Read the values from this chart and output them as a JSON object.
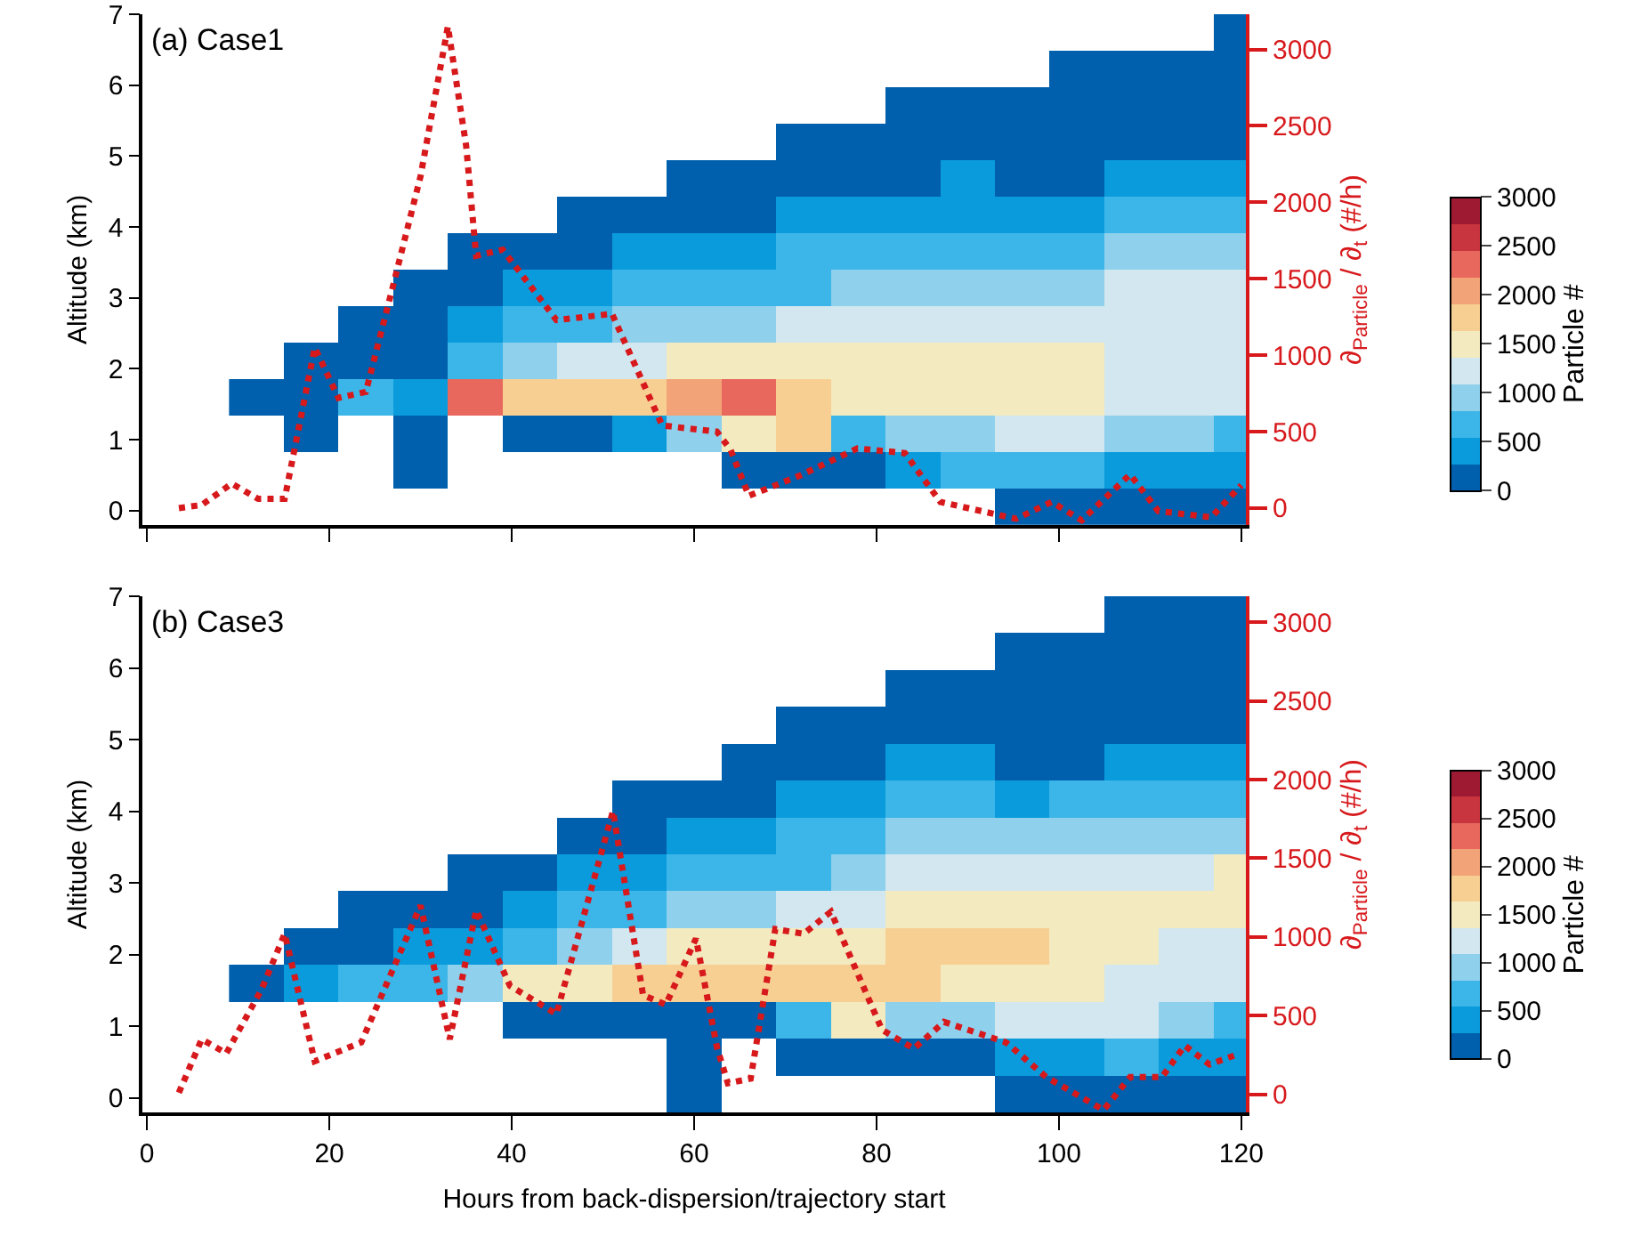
{
  "chart_data": [
    {
      "type": "heatmap",
      "title": "(a) Case1",
      "ylabel": "Altitude (km)",
      "clabel": "Particle #",
      "tick_labels": "y",
      "xlim": [
        -0.5,
        120.5
      ],
      "xticks": [
        0,
        20,
        40,
        60,
        80,
        100,
        120
      ],
      "ylim": [
        -0.2,
        7
      ],
      "yticks": [
        0,
        1,
        2,
        3,
        4,
        5,
        6,
        7
      ],
      "clim": [
        0,
        3000
      ],
      "cticks": [
        0,
        500,
        1000,
        1500,
        2000,
        2500,
        3000
      ],
      "colors": [
        "#0060ad",
        "#0a9bdc",
        "#3cb6e8",
        "#8fd0ec",
        "#d2e7ef",
        "#f3eabf",
        "#f7cf93",
        "#f2a478",
        "#e8685e",
        "#c9353f",
        "#9e1a32"
      ],
      "x": [
        12,
        18,
        24,
        30,
        36,
        42,
        48,
        54,
        60,
        66,
        72,
        78,
        84,
        90,
        96,
        102,
        108,
        114,
        120
      ],
      "cells": [
        [
          null,
          null,
          null,
          null,
          null,
          null,
          null,
          null,
          null,
          null,
          null,
          null,
          null,
          null,
          null,
          null,
          null,
          null,
          150
        ],
        [
          null,
          null,
          null,
          null,
          null,
          null,
          null,
          null,
          null,
          null,
          null,
          null,
          null,
          null,
          null,
          150,
          150,
          150,
          150
        ],
        [
          null,
          null,
          null,
          null,
          null,
          null,
          null,
          null,
          null,
          null,
          null,
          null,
          150,
          150,
          150,
          150,
          150,
          150,
          150
        ],
        [
          null,
          null,
          null,
          null,
          null,
          null,
          null,
          null,
          null,
          null,
          150,
          150,
          150,
          150,
          150,
          150,
          150,
          150,
          150
        ],
        [
          null,
          null,
          null,
          null,
          null,
          null,
          null,
          null,
          150,
          150,
          150,
          150,
          150,
          400,
          150,
          150,
          400,
          400,
          400
        ],
        [
          null,
          null,
          null,
          null,
          null,
          null,
          150,
          150,
          150,
          150,
          400,
          400,
          400,
          400,
          400,
          400,
          700,
          700,
          700
        ],
        [
          null,
          null,
          null,
          null,
          150,
          150,
          150,
          400,
          400,
          400,
          700,
          700,
          700,
          700,
          700,
          700,
          950,
          950,
          950
        ],
        [
          null,
          null,
          null,
          150,
          150,
          400,
          400,
          700,
          700,
          700,
          700,
          950,
          950,
          950,
          950,
          950,
          1200,
          1200,
          1200
        ],
        [
          null,
          null,
          150,
          150,
          400,
          700,
          700,
          950,
          950,
          950,
          1200,
          1200,
          1200,
          1200,
          1200,
          1200,
          1200,
          1200,
          1200
        ],
        [
          null,
          150,
          150,
          150,
          700,
          950,
          1200,
          1200,
          1500,
          1500,
          1500,
          1500,
          1500,
          1500,
          1500,
          1500,
          1200,
          1200,
          1200
        ],
        [
          150,
          150,
          700,
          400,
          2300,
          1750,
          1750,
          1750,
          2050,
          2300,
          1750,
          1500,
          1500,
          1500,
          1500,
          1500,
          1200,
          1200,
          1200
        ],
        [
          null,
          150,
          null,
          150,
          null,
          150,
          150,
          400,
          950,
          1500,
          1750,
          700,
          950,
          950,
          1200,
          1200,
          950,
          950,
          700
        ],
        [
          null,
          null,
          null,
          150,
          null,
          null,
          null,
          null,
          null,
          150,
          150,
          150,
          400,
          700,
          700,
          700,
          400,
          400,
          400
        ],
        [
          null,
          null,
          null,
          null,
          null,
          null,
          null,
          null,
          null,
          null,
          null,
          null,
          null,
          null,
          150,
          150,
          150,
          150,
          150
        ]
      ]
    },
    {
      "type": "line",
      "ylabel": "∂$_{Particle}$ / ∂$_{t}$ (#/h)",
      "tick_labels": "y",
      "color": "#d7191c",
      "line_style": "dotted",
      "marker": "none",
      "xlim": [
        -0.5,
        120.5
      ],
      "ylim": [
        -110,
        3230
      ],
      "yticks": [
        0,
        500,
        1000,
        1500,
        2000,
        2500,
        3000
      ],
      "x": [
        3.5,
        6,
        9.3,
        12.2,
        15.1,
        16.5,
        18.4,
        21,
        24,
        26.8,
        30,
        33,
        35,
        36.1,
        39,
        44.9,
        51,
        56.5,
        62.5,
        64,
        66,
        71.5,
        77.9,
        83.1,
        87,
        95.3,
        99.2,
        102.5,
        107.8,
        110.9,
        116.7,
        120
      ],
      "values": [
        0,
        20,
        160,
        60,
        60,
        480,
        1050,
        720,
        760,
        1410,
        2170,
        3150,
        2370,
        1650,
        1690,
        1230,
        1270,
        540,
        500,
        380,
        80,
        210,
        390,
        360,
        40,
        -70,
        40,
        -80,
        220,
        -20,
        -60,
        150
      ]
    },
    {
      "type": "heatmap",
      "title": "(b) Case3",
      "xlabel": "Hours from back-dispersion/trajectory start",
      "ylabel": "Altitude (km)",
      "clabel": "Particle #",
      "xlim": [
        -0.5,
        120.5
      ],
      "xticks": [
        0,
        20,
        40,
        60,
        80,
        100,
        120
      ],
      "ylim": [
        -0.2,
        7
      ],
      "yticks": [
        0,
        1,
        2,
        3,
        4,
        5,
        6,
        7
      ],
      "clim": [
        0,
        3000
      ],
      "cticks": [
        0,
        500,
        1000,
        1500,
        2000,
        2500,
        3000
      ],
      "colors": [
        "#0060ad",
        "#0a9bdc",
        "#3cb6e8",
        "#8fd0ec",
        "#d2e7ef",
        "#f3eabf",
        "#f7cf93",
        "#f2a478",
        "#e8685e",
        "#c9353f",
        "#9e1a32"
      ],
      "x": [
        12,
        18,
        24,
        30,
        36,
        42,
        48,
        54,
        60,
        66,
        72,
        78,
        84,
        90,
        96,
        102,
        108,
        114,
        120
      ],
      "cells": [
        [
          null,
          null,
          null,
          null,
          null,
          null,
          null,
          null,
          null,
          null,
          null,
          null,
          null,
          null,
          null,
          null,
          150,
          150,
          150
        ],
        [
          null,
          null,
          null,
          null,
          null,
          null,
          null,
          null,
          null,
          null,
          null,
          null,
          null,
          null,
          150,
          150,
          150,
          150,
          150
        ],
        [
          null,
          null,
          null,
          null,
          null,
          null,
          null,
          null,
          null,
          null,
          null,
          null,
          150,
          150,
          150,
          150,
          150,
          150,
          150
        ],
        [
          null,
          null,
          null,
          null,
          null,
          null,
          null,
          null,
          null,
          null,
          150,
          150,
          150,
          150,
          150,
          150,
          150,
          150,
          150
        ],
        [
          null,
          null,
          null,
          null,
          null,
          null,
          null,
          null,
          null,
          150,
          150,
          150,
          400,
          400,
          150,
          150,
          400,
          400,
          400
        ],
        [
          null,
          null,
          null,
          null,
          null,
          null,
          null,
          150,
          150,
          150,
          400,
          400,
          700,
          700,
          400,
          700,
          700,
          700,
          700
        ],
        [
          null,
          null,
          null,
          null,
          null,
          null,
          150,
          150,
          400,
          400,
          700,
          700,
          950,
          950,
          950,
          950,
          950,
          950,
          950
        ],
        [
          null,
          null,
          null,
          null,
          150,
          150,
          400,
          400,
          700,
          700,
          700,
          950,
          1200,
          1200,
          1200,
          1200,
          1200,
          1200,
          1500
        ],
        [
          null,
          null,
          150,
          150,
          150,
          400,
          700,
          700,
          950,
          950,
          1200,
          1200,
          1500,
          1500,
          1500,
          1500,
          1500,
          1500,
          1500
        ],
        [
          null,
          150,
          150,
          400,
          400,
          700,
          950,
          1200,
          1500,
          1500,
          1500,
          1500,
          1750,
          1750,
          1750,
          1500,
          1500,
          1200,
          1200
        ],
        [
          150,
          400,
          700,
          700,
          950,
          1500,
          1500,
          1750,
          1750,
          1750,
          1750,
          1750,
          1750,
          1500,
          1500,
          1500,
          1200,
          1200,
          1200
        ],
        [
          null,
          null,
          null,
          null,
          null,
          150,
          150,
          150,
          150,
          150,
          700,
          1500,
          950,
          950,
          1200,
          1200,
          1200,
          950,
          700
        ],
        [
          null,
          null,
          null,
          null,
          null,
          null,
          null,
          null,
          150,
          null,
          150,
          150,
          150,
          150,
          400,
          400,
          700,
          400,
          400
        ],
        [
          null,
          null,
          null,
          null,
          null,
          null,
          null,
          null,
          150,
          null,
          null,
          null,
          null,
          null,
          150,
          150,
          150,
          150,
          150
        ]
      ]
    },
    {
      "type": "line",
      "ylabel": "∂$_{Particle}$ / ∂$_{t}$ (#/h)",
      "tick_labels": "y",
      "color": "#d7191c",
      "line_style": "dotted",
      "marker": "none",
      "xlim": [
        -0.5,
        120.5
      ],
      "ylim": [
        -115,
        3165
      ],
      "yticks": [
        0,
        500,
        1000,
        1500,
        2000,
        2500,
        3000
      ],
      "x": [
        3.5,
        6,
        8.7,
        12.6,
        15.1,
        18.4,
        23.5,
        30,
        33.2,
        36.1,
        39.8,
        44.9,
        51.1,
        54.4,
        56.9,
        60.2,
        62.5,
        63.7,
        66.2,
        68.9,
        72,
        75,
        80.6,
        84.1,
        87.4,
        94.2,
        98.6,
        104.9,
        107.8,
        111.3,
        113.8,
        116.5,
        119.4
      ],
      "values": [
        10,
        350,
        260,
        670,
        1020,
        210,
        330,
        1200,
        350,
        1170,
        690,
        510,
        1800,
        630,
        570,
        990,
        300,
        70,
        100,
        1050,
        1020,
        1160,
        410,
        290,
        460,
        330,
        110,
        -100,
        110,
        110,
        310,
        190,
        250
      ]
    }
  ]
}
